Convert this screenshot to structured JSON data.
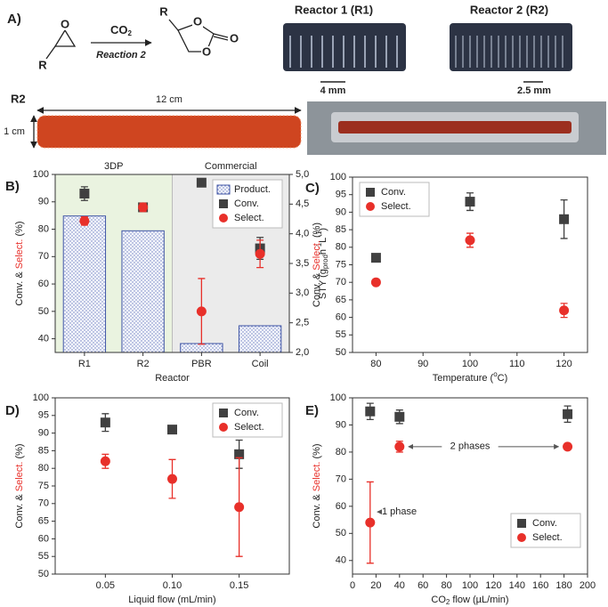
{
  "panel_a": {
    "label": "A)",
    "reactant_r": "R",
    "reactant_o": "O",
    "reagent": [
      {
        "text": "CO"
      },
      {
        "text": "2",
        "shift": "sub"
      }
    ],
    "reaction": "Reaction 2",
    "product_r": "R",
    "product_o": [
      "O",
      "O",
      "O"
    ],
    "reactor1": "Reactor 1 (R1)",
    "scale1": "4 mm",
    "reactor2": "Reactor 2 (R2)",
    "scale2": "2.5 mm",
    "rod_label": "R2",
    "length": "12 cm",
    "width": "1 cm"
  },
  "chart_data": [
    {
      "label": "B)",
      "type": "combo",
      "categories": [
        "R1",
        "R2",
        "PBR",
        "Coil"
      ],
      "xlabel": "Reactor",
      "ylabel": [
        {
          "text": "Conv. & ",
          "color": "#222222"
        },
        {
          "text": "Select.",
          "color": "#e8302a"
        },
        {
          "text": " (%)",
          "color": "#222222"
        }
      ],
      "y2label": [
        {
          "text": "STY (g"
        },
        {
          "text": "prod",
          "shift": "sub"
        },
        {
          "text": "h"
        },
        {
          "text": "-1",
          "shift": "super"
        },
        {
          "text": "L"
        },
        {
          "text": "-1",
          "shift": "super"
        },
        {
          "text": ")"
        }
      ],
      "ylim": [
        35,
        100
      ],
      "yticks": [
        40,
        50,
        60,
        70,
        80,
        90,
        100
      ],
      "y2lim": [
        2.0,
        5.0
      ],
      "y2ticks": [
        {
          "value": 2.0,
          "label": "2,0"
        },
        {
          "value": 2.5,
          "label": "2,5"
        },
        {
          "value": 3.0,
          "label": "3,0"
        },
        {
          "value": 3.5,
          "label": "3,5"
        },
        {
          "value": 4.0,
          "label": "4,0"
        },
        {
          "value": 4.5,
          "label": "4,5"
        },
        {
          "value": 5.0,
          "label": "5,0"
        }
      ],
      "regions": [
        {
          "text": "3DP",
          "color": "#eaf3e0"
        },
        {
          "text": "Commercial",
          "color": "#ebebeb"
        }
      ],
      "legend": "upper right",
      "series": [
        {
          "name": "Product.",
          "marker": "bar",
          "axis": "y2",
          "color": "#3f55a5",
          "values": [
            4.3,
            4.05,
            2.15,
            2.45
          ]
        },
        {
          "name": "Conv.",
          "marker": "square",
          "color": "#404040",
          "values": [
            93,
            88,
            97,
            73
          ],
          "errors": [
            2.5,
            1.5,
            1,
            4
          ]
        },
        {
          "name": "Select.",
          "marker": "circle",
          "color": "#e8302a",
          "values": [
            83,
            88,
            50,
            71
          ],
          "errors": [
            1.5,
            1.5,
            12,
            5
          ]
        }
      ]
    },
    {
      "label": "C)",
      "type": "scatter",
      "x": [
        80,
        100,
        120
      ],
      "xlim": [
        75,
        125
      ],
      "xticks": [
        80,
        90,
        100,
        110,
        120
      ],
      "xlabel": [
        {
          "text": "Temperature ("
        },
        {
          "text": "o",
          "shift": "super"
        },
        {
          "text": "C)"
        }
      ],
      "ylabel": [
        {
          "text": "Conv. & ",
          "color": "#222222"
        },
        {
          "text": "Select.",
          "color": "#e8302a"
        },
        {
          "text": " (%)",
          "color": "#222222"
        }
      ],
      "ylim": [
        50,
        100
      ],
      "yticks": [
        50,
        55,
        60,
        65,
        70,
        75,
        80,
        85,
        90,
        95,
        100
      ],
      "legend": "upper left",
      "series": [
        {
          "name": "Conv.",
          "marker": "square",
          "color": "#404040",
          "values": [
            77,
            93,
            88
          ],
          "errors": [
            null,
            2.5,
            5.5
          ]
        },
        {
          "name": "Select.",
          "marker": "circle",
          "color": "#e8302a",
          "values": [
            70,
            82,
            62
          ],
          "errors": [
            null,
            2,
            2
          ]
        }
      ]
    },
    {
      "label": "D)",
      "type": "scatter",
      "x": [
        0.05,
        0.1,
        0.15
      ],
      "xlim": [
        0.0125,
        0.1875
      ],
      "xticks": [
        {
          "value": 0.05,
          "label": "0.05"
        },
        {
          "value": 0.1,
          "label": "0.10"
        },
        {
          "value": 0.15,
          "label": "0.15"
        }
      ],
      "xlabel": "Liquid flow (mL/min)",
      "ylabel": [
        {
          "text": "Conv. & ",
          "color": "#222222"
        },
        {
          "text": "Select.",
          "color": "#e8302a"
        },
        {
          "text": " (%)",
          "color": "#222222"
        }
      ],
      "ylim": [
        50,
        100
      ],
      "yticks": [
        50,
        55,
        60,
        65,
        70,
        75,
        80,
        85,
        90,
        95,
        100
      ],
      "legend": "upper right",
      "series": [
        {
          "name": "Conv.",
          "marker": "square",
          "color": "#404040",
          "values": [
            93,
            91,
            84
          ],
          "errors": [
            2.5,
            1,
            4
          ]
        },
        {
          "name": "Select.",
          "marker": "circle",
          "color": "#e8302a",
          "values": [
            82,
            77,
            69
          ],
          "errors": [
            2,
            5.5,
            14
          ]
        }
      ]
    },
    {
      "label": "E)",
      "type": "scatter",
      "x": [
        15,
        40,
        183
      ],
      "xlim": [
        0,
        200
      ],
      "xticks": [
        0,
        20,
        40,
        60,
        80,
        100,
        120,
        140,
        160,
        180,
        200
      ],
      "xlabel": [
        {
          "text": "CO"
        },
        {
          "text": "2",
          "shift": "sub"
        },
        {
          "text": " flow (µL/min)"
        }
      ],
      "ylabel": [
        {
          "text": "Conv. & ",
          "color": "#222222"
        },
        {
          "text": "Select.",
          "color": "#e8302a"
        },
        {
          "text": " (%)",
          "color": "#222222"
        }
      ],
      "ylim": [
        35,
        100
      ],
      "yticks": [
        40,
        50,
        60,
        70,
        80,
        90,
        100
      ],
      "legend": "lower right",
      "annotations": [
        "2 phases",
        "1 phase"
      ],
      "series": [
        {
          "name": "Conv.",
          "marker": "square",
          "color": "#404040",
          "values": [
            95,
            93,
            94
          ],
          "errors": [
            3,
            2.5,
            3
          ]
        },
        {
          "name": "Select.",
          "marker": "circle",
          "color": "#e8302a",
          "values": [
            54,
            82,
            82
          ],
          "errors": [
            15,
            2,
            1
          ]
        }
      ]
    }
  ]
}
